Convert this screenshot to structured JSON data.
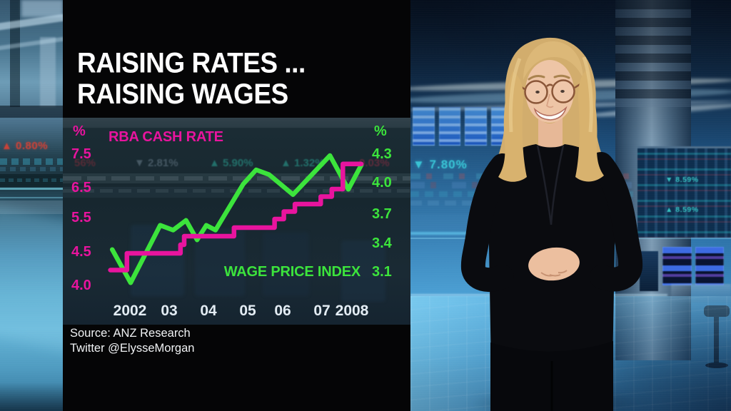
{
  "title": {
    "line1": "RAISING RATES ...",
    "line2": "RAISING WAGES"
  },
  "source": {
    "line1": "Source: ANZ Research",
    "line2": "Twitter @ElysseMorgan"
  },
  "chart_data": {
    "type": "line",
    "title": "RAISING RATES ... RAISING WAGES",
    "x_axis": {
      "labels": [
        "2002",
        "03",
        "04",
        "05",
        "06",
        "07",
        "2008"
      ],
      "range": [
        2001.4,
        2008.4
      ]
    },
    "left_axis": {
      "unit": "%",
      "label": "RBA CASH RATE",
      "color": "#e8149e",
      "ticks": [
        "7.5",
        "6.5",
        "5.5",
        "4.5",
        "4.0"
      ]
    },
    "right_axis": {
      "unit": "%",
      "label": "WAGE PRICE INDEX",
      "color": "#3ce43c",
      "ticks": [
        "4.3",
        "4.0",
        "3.7",
        "3.4",
        "3.1"
      ]
    },
    "grid": false,
    "legend_position": "inline-labels",
    "series": [
      {
        "name": "RBA CASH RATE",
        "axis": "left",
        "style": "step",
        "color": "#e8149e",
        "unit": "%",
        "points": [
          [
            2001.45,
            4.25
          ],
          [
            2001.9,
            4.5
          ],
          [
            2003.35,
            4.75
          ],
          [
            2003.45,
            5.0
          ],
          [
            2004.8,
            5.25
          ],
          [
            2005.9,
            5.5
          ],
          [
            2006.15,
            5.75
          ],
          [
            2006.45,
            6.0
          ],
          [
            2007.15,
            6.25
          ],
          [
            2007.45,
            6.5
          ],
          [
            2007.75,
            7.25
          ],
          [
            2008.25,
            7.25
          ]
        ]
      },
      {
        "name": "WAGE PRICE INDEX",
        "axis": "right",
        "style": "linear",
        "color": "#3ce43c",
        "unit": "%",
        "points": [
          [
            2001.5,
            3.35
          ],
          [
            2002.0,
            3.0
          ],
          [
            2002.8,
            3.6
          ],
          [
            2003.15,
            3.55
          ],
          [
            2003.5,
            3.65
          ],
          [
            2003.8,
            3.45
          ],
          [
            2004.05,
            3.6
          ],
          [
            2004.3,
            3.55
          ],
          [
            2005.05,
            4.0
          ],
          [
            2005.4,
            4.15
          ],
          [
            2005.75,
            4.1
          ],
          [
            2006.4,
            3.9
          ],
          [
            2007.4,
            4.3
          ],
          [
            2007.9,
            3.95
          ],
          [
            2008.25,
            4.2
          ]
        ]
      }
    ]
  },
  "background": {
    "left_ticker": "▲ 0.80%",
    "studio_ticker": "▼ 7.80%",
    "board_tickers": [
      "▼ 8.59%",
      "▲ 8.59%"
    ],
    "behind_chart_tickers": [
      "56%",
      "▼ 2.81%",
      "▲ 5.90%",
      "▲ 1.32%",
      "0.03%"
    ]
  }
}
